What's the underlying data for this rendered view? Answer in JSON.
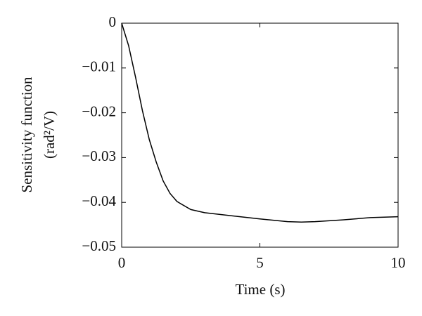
{
  "chart_data": {
    "type": "line",
    "xlabel": "Time (s)",
    "ylabel": [
      "Sensitivity function",
      "(rad²/V)"
    ],
    "x": [
      0,
      0.25,
      0.5,
      0.75,
      1.0,
      1.25,
      1.5,
      1.75,
      2.0,
      2.5,
      3,
      4,
      5,
      6,
      6.5,
      7,
      8,
      9,
      10
    ],
    "values": [
      0,
      -0.005,
      -0.012,
      -0.0195,
      -0.026,
      -0.031,
      -0.0352,
      -0.038,
      -0.0398,
      -0.0416,
      -0.0423,
      -0.043,
      -0.0437,
      -0.0443,
      -0.0444,
      -0.0443,
      -0.0439,
      -0.0434,
      -0.0432
    ],
    "color": "#000000",
    "xlim": [
      0,
      10
    ],
    "xticks": [
      0,
      5,
      10
    ],
    "ylim": [
      -0.05,
      0
    ],
    "yticks": [
      0,
      {
        "value": -0.01,
        "label": "−0.01"
      },
      {
        "value": -0.02,
        "label": "−0.02"
      },
      {
        "value": -0.03,
        "label": "−0.03"
      },
      {
        "value": -0.04,
        "label": "−0.04"
      },
      {
        "value": -0.05,
        "label": "−0.05"
      }
    ]
  }
}
